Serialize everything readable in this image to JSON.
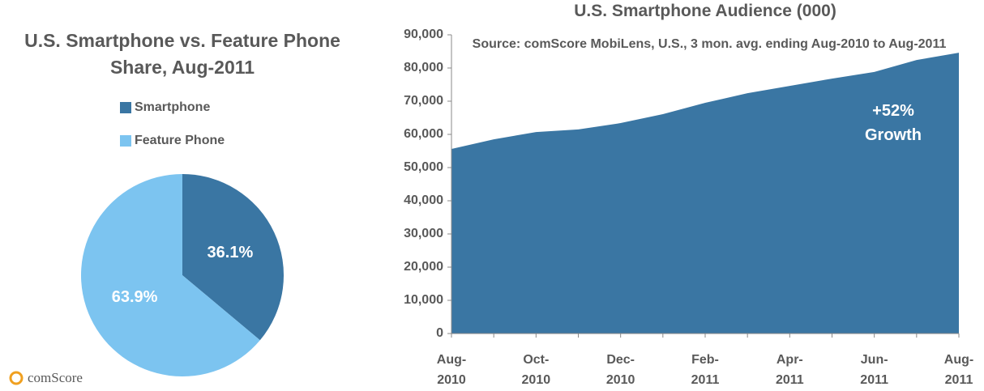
{
  "chart_data": [
    {
      "type": "pie",
      "title": "U.S. Smartphone vs. Feature Phone Share, Aug-2011",
      "categories": [
        "Smartphone",
        "Feature Phone"
      ],
      "values": [
        36.1,
        63.9
      ],
      "value_labels": [
        "36.1%",
        "63.9%"
      ],
      "colors": [
        "#3a76a3",
        "#7cc4f0"
      ],
      "legend": "top"
    },
    {
      "type": "area",
      "title": "U.S. Smartphone Audience (000)",
      "subtitle": "Source: comScore MobiLens, U.S., 3 mon. avg. ending Aug-2010 to Aug-2011",
      "categories": [
        "Aug-2010",
        null,
        "Oct-2010",
        null,
        "Dec-2010",
        null,
        "Feb-2011",
        null,
        "Apr-2011",
        null,
        "Jun-2011",
        null,
        "Aug-2011"
      ],
      "series": [
        {
          "name": "U.S. Smartphone Audience",
          "color": "#3a76a3",
          "values": [
            55600,
            58500,
            60700,
            61500,
            63400,
            66100,
            69500,
            72400,
            74600,
            76800,
            78800,
            82400,
            84600
          ]
        }
      ],
      "ylim": [
        0,
        90000
      ],
      "yticks": [
        0,
        {
          "value": 10000,
          "label": "10,000"
        },
        {
          "value": 20000,
          "label": "20,000"
        },
        {
          "value": 30000,
          "label": "30,000"
        },
        {
          "value": 40000,
          "label": "40,000"
        },
        {
          "value": 50000,
          "label": "50,000"
        },
        {
          "value": 60000,
          "label": "60,000"
        },
        {
          "value": 70000,
          "label": "70,000"
        },
        {
          "value": 80000,
          "label": "80,000"
        },
        {
          "value": 90000,
          "label": "90,000"
        }
      ],
      "annotation": "+52% Growth"
    }
  ],
  "logo": "comScore"
}
